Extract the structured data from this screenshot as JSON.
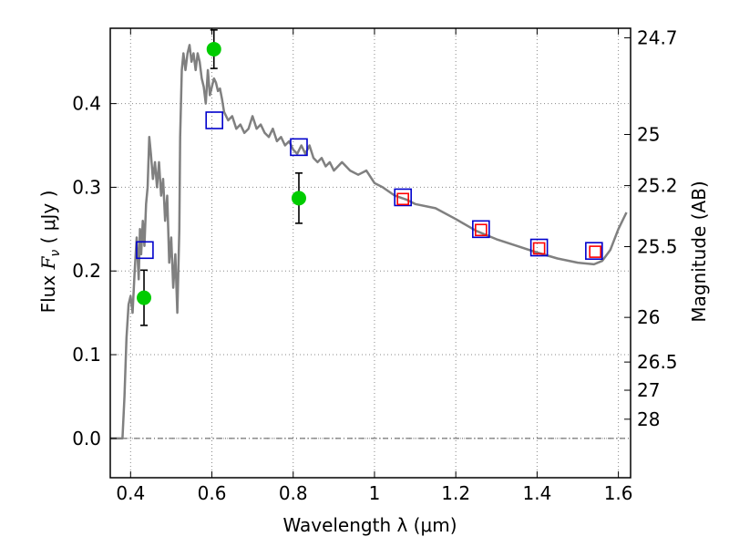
{
  "chart_data": {
    "type": "line",
    "xlabel": "Wavelength  λ (μm)",
    "ylabel_parts": {
      "prefix": "Flux  ",
      "var": "F",
      "sub": "ν",
      "unit": "  ( μJy )"
    },
    "y2label": "Magnitude (AB)",
    "xlim": [
      0.35,
      1.63
    ],
    "ylim": [
      -0.047,
      0.49
    ],
    "grid": true,
    "x_ticks": [
      0.4,
      0.6,
      0.8,
      1.0,
      1.2,
      1.4,
      1.6
    ],
    "x_tick_labels": [
      "0.4",
      "0.6",
      "0.8",
      "1",
      "1.2",
      "1.4",
      "1.6"
    ],
    "y_ticks": [
      0.0,
      0.1,
      0.2,
      0.3,
      0.4
    ],
    "y_tick_labels": [
      "0.0",
      "0.1",
      "0.2",
      "0.3",
      "0.4"
    ],
    "mag_ticks": [
      24.7,
      25.0,
      25.2,
      25.5,
      26.0,
      26.5,
      27.0,
      28.0
    ],
    "mag_tick_labels": [
      "24.7",
      "25",
      "25.2",
      "25.5",
      "26",
      "26.5",
      "27",
      "28"
    ],
    "zero_line": 0.0,
    "colors": {
      "spectrum": "#808080",
      "observed": "#00cc00",
      "model_blue": "#0000cc",
      "model_red": "#ff0000",
      "errorbar": "#000000",
      "grid": "#888888"
    },
    "series": [
      {
        "name": "model spectrum",
        "kind": "line",
        "x": [
          0.35,
          0.38,
          0.385,
          0.39,
          0.395,
          0.4,
          0.405,
          0.41,
          0.415,
          0.42,
          0.423,
          0.426,
          0.43,
          0.434,
          0.438,
          0.442,
          0.446,
          0.45,
          0.455,
          0.46,
          0.465,
          0.47,
          0.475,
          0.48,
          0.485,
          0.49,
          0.495,
          0.5,
          0.505,
          0.51,
          0.515,
          0.52,
          0.522,
          0.526,
          0.53,
          0.535,
          0.54,
          0.545,
          0.55,
          0.555,
          0.56,
          0.565,
          0.57,
          0.575,
          0.58,
          0.585,
          0.59,
          0.595,
          0.6,
          0.605,
          0.61,
          0.615,
          0.62,
          0.625,
          0.63,
          0.64,
          0.65,
          0.66,
          0.67,
          0.68,
          0.69,
          0.7,
          0.71,
          0.72,
          0.73,
          0.74,
          0.75,
          0.76,
          0.77,
          0.78,
          0.79,
          0.8,
          0.81,
          0.82,
          0.83,
          0.84,
          0.85,
          0.86,
          0.87,
          0.88,
          0.89,
          0.9,
          0.92,
          0.94,
          0.96,
          0.98,
          1.0,
          1.02,
          1.05,
          1.08,
          1.1,
          1.15,
          1.2,
          1.25,
          1.3,
          1.35,
          1.4,
          1.45,
          1.5,
          1.54,
          1.56,
          1.58,
          1.6,
          1.62
        ],
        "y": [
          0.0,
          0.0,
          0.05,
          0.12,
          0.16,
          0.17,
          0.15,
          0.2,
          0.24,
          0.19,
          0.25,
          0.22,
          0.26,
          0.23,
          0.28,
          0.3,
          0.36,
          0.34,
          0.31,
          0.33,
          0.3,
          0.33,
          0.29,
          0.31,
          0.26,
          0.29,
          0.21,
          0.24,
          0.18,
          0.22,
          0.15,
          0.25,
          0.36,
          0.44,
          0.46,
          0.44,
          0.46,
          0.47,
          0.45,
          0.46,
          0.44,
          0.46,
          0.45,
          0.43,
          0.42,
          0.4,
          0.44,
          0.41,
          0.42,
          0.43,
          0.425,
          0.415,
          0.418,
          0.405,
          0.39,
          0.38,
          0.385,
          0.37,
          0.375,
          0.365,
          0.37,
          0.385,
          0.37,
          0.375,
          0.365,
          0.36,
          0.37,
          0.355,
          0.36,
          0.35,
          0.355,
          0.345,
          0.34,
          0.35,
          0.34,
          0.35,
          0.335,
          0.33,
          0.335,
          0.325,
          0.33,
          0.32,
          0.33,
          0.32,
          0.315,
          0.32,
          0.305,
          0.3,
          0.29,
          0.285,
          0.28,
          0.275,
          0.262,
          0.248,
          0.238,
          0.23,
          0.222,
          0.215,
          0.21,
          0.208,
          0.212,
          0.225,
          0.25,
          0.27
        ]
      },
      {
        "name": "observed photometry",
        "kind": "points_errorbars",
        "points": [
          {
            "x": 0.433,
            "y": 0.168,
            "yerr": 0.033
          },
          {
            "x": 0.605,
            "y": 0.465,
            "yerr": 0.023
          },
          {
            "x": 0.814,
            "y": 0.287,
            "yerr": 0.03
          }
        ]
      },
      {
        "name": "model photometry (blue squares)",
        "kind": "open_squares",
        "points": [
          {
            "x": 0.435,
            "y": 0.225
          },
          {
            "x": 0.606,
            "y": 0.38
          },
          {
            "x": 0.814,
            "y": 0.348
          },
          {
            "x": 1.07,
            "y": 0.288
          },
          {
            "x": 1.262,
            "y": 0.25
          },
          {
            "x": 1.405,
            "y": 0.228
          },
          {
            "x": 1.54,
            "y": 0.224
          }
        ]
      },
      {
        "name": "observed IR photometry (red squares)",
        "kind": "open_squares_small",
        "points": [
          {
            "x": 1.07,
            "y": 0.286
          },
          {
            "x": 1.262,
            "y": 0.249
          },
          {
            "x": 1.405,
            "y": 0.227
          },
          {
            "x": 1.543,
            "y": 0.223
          }
        ]
      }
    ]
  }
}
